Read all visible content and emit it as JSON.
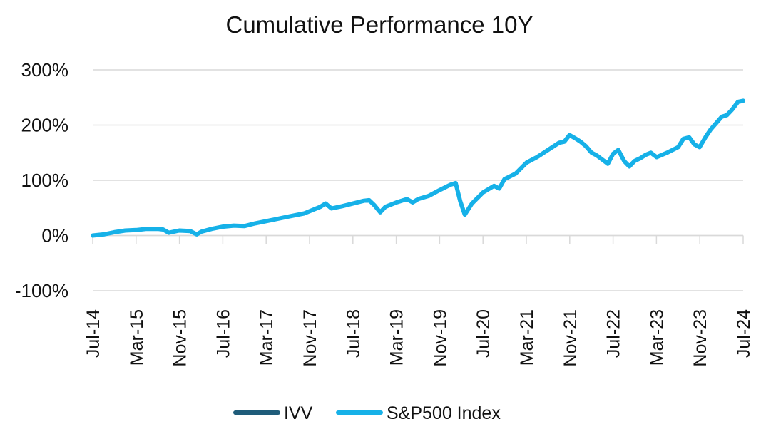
{
  "chart_data": {
    "type": "line",
    "title": "Cumulative Performance 10Y",
    "xlabel": "",
    "ylabel": "",
    "ylim": [
      -100,
      300
    ],
    "yticks": [
      -100,
      0,
      100,
      200,
      300
    ],
    "ytick_labels": [
      "-100%",
      "0%",
      "100%",
      "200%",
      "300%"
    ],
    "grid": true,
    "legend_position": "bottom-center",
    "x_start": 2014.5,
    "x_end": 2024.5,
    "xtick_labels": [
      "Jul-14",
      "Mar-15",
      "Nov-15",
      "Jul-16",
      "Mar-17",
      "Nov-17",
      "Jul-18",
      "Mar-19",
      "Nov-19",
      "Jul-20",
      "Mar-21",
      "Nov-21",
      "Jul-22",
      "Mar-23",
      "Nov-23",
      "Jul-24"
    ],
    "x": [
      2014.5,
      2014.67,
      2014.83,
      2015.0,
      2015.17,
      2015.33,
      2015.5,
      2015.58,
      2015.67,
      2015.83,
      2016.0,
      2016.1,
      2016.17,
      2016.33,
      2016.5,
      2016.67,
      2016.83,
      2017.0,
      2017.25,
      2017.5,
      2017.75,
      2018.0,
      2018.08,
      2018.17,
      2018.33,
      2018.5,
      2018.67,
      2018.75,
      2018.83,
      2018.92,
      2019.0,
      2019.17,
      2019.33,
      2019.42,
      2019.5,
      2019.67,
      2019.83,
      2020.0,
      2020.08,
      2020.15,
      2020.22,
      2020.33,
      2020.5,
      2020.67,
      2020.75,
      2020.83,
      2021.0,
      2021.17,
      2021.33,
      2021.5,
      2021.67,
      2021.75,
      2021.83,
      2021.92,
      2022.0,
      2022.08,
      2022.17,
      2022.25,
      2022.33,
      2022.42,
      2022.5,
      2022.58,
      2022.67,
      2022.75,
      2022.83,
      2022.92,
      2023.0,
      2023.08,
      2023.17,
      2023.33,
      2023.5,
      2023.58,
      2023.67,
      2023.75,
      2023.83,
      2023.92,
      2024.0,
      2024.17,
      2024.25,
      2024.33,
      2024.42,
      2024.5
    ],
    "series": [
      {
        "name": "IVV",
        "color": "#1f5c7a",
        "values": [
          0,
          2,
          6,
          9,
          10,
          12,
          12,
          11,
          5,
          9,
          8,
          2,
          7,
          12,
          16,
          18,
          17,
          22,
          28,
          34,
          40,
          52,
          58,
          49,
          53,
          58,
          63,
          64,
          55,
          42,
          52,
          60,
          66,
          60,
          66,
          72,
          82,
          92,
          95,
          62,
          38,
          58,
          78,
          90,
          85,
          102,
          112,
          132,
          142,
          155,
          168,
          170,
          182,
          176,
          170,
          162,
          150,
          145,
          138,
          130,
          148,
          155,
          135,
          125,
          135,
          140,
          146,
          150,
          142,
          150,
          160,
          175,
          178,
          165,
          160,
          178,
          192,
          215,
          218,
          228,
          242,
          244
        ]
      },
      {
        "name": "S&P500 Index",
        "color": "#16b1e8",
        "values": [
          0,
          2,
          6,
          9,
          10,
          12,
          12,
          11,
          5,
          9,
          8,
          2,
          7,
          12,
          16,
          18,
          17,
          22,
          28,
          34,
          40,
          52,
          58,
          49,
          53,
          58,
          63,
          64,
          55,
          42,
          52,
          60,
          66,
          60,
          66,
          72,
          82,
          92,
          95,
          62,
          38,
          58,
          78,
          90,
          85,
          102,
          112,
          132,
          142,
          155,
          168,
          170,
          182,
          176,
          170,
          162,
          150,
          145,
          138,
          130,
          148,
          155,
          135,
          125,
          135,
          140,
          146,
          150,
          142,
          150,
          160,
          175,
          178,
          165,
          160,
          178,
          192,
          215,
          218,
          228,
          242,
          244
        ]
      }
    ]
  }
}
